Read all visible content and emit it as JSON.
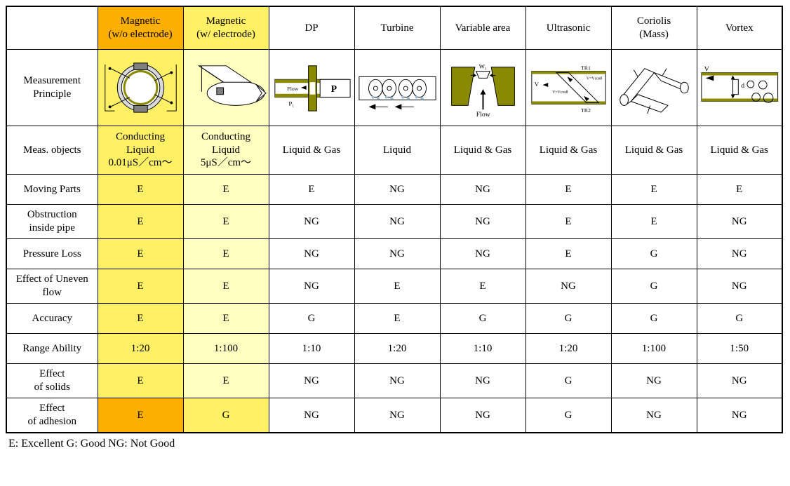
{
  "highlight_colors": {
    "orange": "#feb000",
    "yellow": "#fff066",
    "light_yellow": "#ffffc0"
  },
  "diagram_accent": "#8a8a00",
  "columns": [
    {
      "key": "mag_woe",
      "label": "Magnetic\n(w/o electrode)",
      "header_bg": "orange",
      "body_bg": "yellow",
      "diagram_bg": "yellow"
    },
    {
      "key": "mag_we",
      "label": "Magnetic\n(w/ electrode)",
      "header_bg": "yellow",
      "body_bg": "lyellow",
      "diagram_bg": "lyellow"
    },
    {
      "key": "dp",
      "label": "DP",
      "header_bg": "none",
      "body_bg": "none",
      "diagram_bg": "none"
    },
    {
      "key": "turbine",
      "label": "Turbine",
      "header_bg": "none",
      "body_bg": "none",
      "diagram_bg": "none"
    },
    {
      "key": "va",
      "label": "Variable area",
      "header_bg": "none",
      "body_bg": "none",
      "diagram_bg": "none"
    },
    {
      "key": "us",
      "label": "Ultrasonic",
      "header_bg": "none",
      "body_bg": "none",
      "diagram_bg": "none"
    },
    {
      "key": "cor",
      "label": "Coriolis\n(Mass)",
      "header_bg": "none",
      "body_bg": "none",
      "diagram_bg": "none"
    },
    {
      "key": "vortex",
      "label": "Vortex",
      "header_bg": "none",
      "body_bg": "none",
      "diagram_bg": "none"
    }
  ],
  "row_headers": {
    "principle": "Measurement\nPrinciple",
    "meas_obj": "Meas. objects",
    "moving": "Moving Parts",
    "obstr": "Obstruction\ninside pipe",
    "ploss": "Pressure Loss",
    "uneven": "Effect of Uneven\nflow",
    "acc": "Accuracy",
    "range": "Range Ability",
    "solids": "Effect\nof solids",
    "adh": "Effect\nof adhesion"
  },
  "diagram_labels": {
    "dp": {
      "flow": "Flow",
      "p1": "P₁",
      "p2": "P"
    },
    "va": {
      "w": "W₁",
      "flow": "Flow"
    },
    "us": {
      "v": "V",
      "tr1": "TR1",
      "tr2": "TR2",
      "f1": "V=V\ncos\nθ",
      "f2": "V=\nV\ncos\nθ"
    },
    "vortex": {
      "v": "V",
      "d": "d"
    }
  },
  "rows": {
    "meas_obj": [
      "Conducting\nLiquid\n0.01μS／cm～",
      "Conducting\nLiquid\n5μS／cm～",
      "Liquid & Gas",
      "Liquid",
      "Liquid & Gas",
      "Liquid & Gas",
      "Liquid & Gas",
      "Liquid & Gas"
    ],
    "moving": [
      "E",
      "E",
      "E",
      "NG",
      "NG",
      "E",
      "E",
      "E"
    ],
    "obstr": [
      "E",
      "E",
      "NG",
      "NG",
      "NG",
      "E",
      "E",
      "NG"
    ],
    "ploss": [
      "E",
      "E",
      "NG",
      "NG",
      "NG",
      "E",
      "G",
      "NG"
    ],
    "uneven": [
      "E",
      "E",
      "NG",
      "E",
      "E",
      "NG",
      "G",
      "NG"
    ],
    "acc": [
      "E",
      "E",
      "G",
      "E",
      "G",
      "G",
      "G",
      "G"
    ],
    "range": [
      "1:20",
      "1:100",
      "1:10",
      "1:20",
      "1:10",
      "1:20",
      "1:100",
      "1:50"
    ],
    "solids": [
      "E",
      "E",
      "NG",
      "NG",
      "NG",
      "G",
      "NG",
      "NG"
    ],
    "adh": [
      "E",
      "G",
      "NG",
      "NG",
      "NG",
      "G",
      "NG",
      "NG"
    ]
  },
  "adh_cell_bg": [
    "orange",
    "yellow",
    "none",
    "none",
    "none",
    "none",
    "none",
    "none"
  ],
  "legend": "E: Excellent   G: Good   NG: Not Good"
}
